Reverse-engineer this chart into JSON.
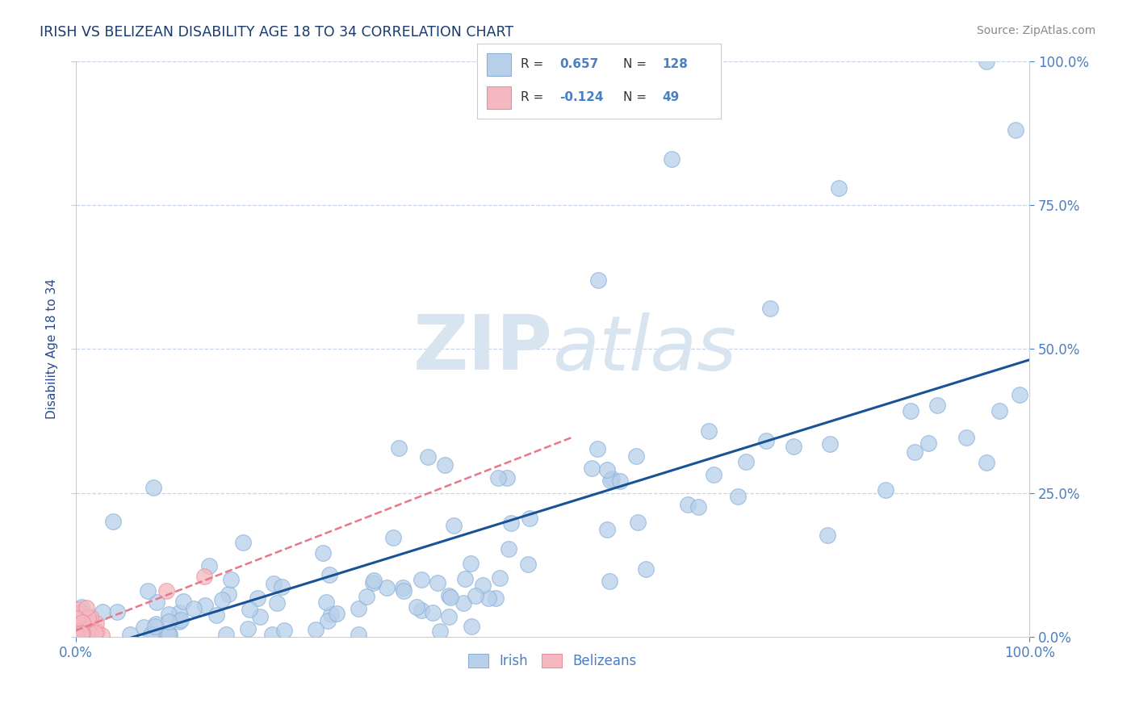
{
  "title": "IRISH VS BELIZEAN DISABILITY AGE 18 TO 34 CORRELATION CHART",
  "source_text": "Source: ZipAtlas.com",
  "ylabel": "Disability Age 18 to 34",
  "legend_irish_R": 0.657,
  "legend_irish_N": 128,
  "legend_belizean_R": -0.124,
  "legend_belizean_N": 49,
  "irish_dot_color": "#b8d0ea",
  "irish_dot_edge": "#8ab0d8",
  "belizean_dot_color": "#f4b8c0",
  "belizean_dot_edge": "#e890a0",
  "irish_line_color": "#1a5296",
  "belizean_line_color": "#e87888",
  "title_color": "#1a3a6b",
  "axis_label_color": "#2a4a8b",
  "tick_label_color": "#4a7fc1",
  "legend_r_color": "#333333",
  "legend_n_color": "#4a7fc1",
  "watermark_color": "#d8e4f0",
  "background_color": "#ffffff",
  "grid_color": "#c8d4e8",
  "source_color": "#888888"
}
